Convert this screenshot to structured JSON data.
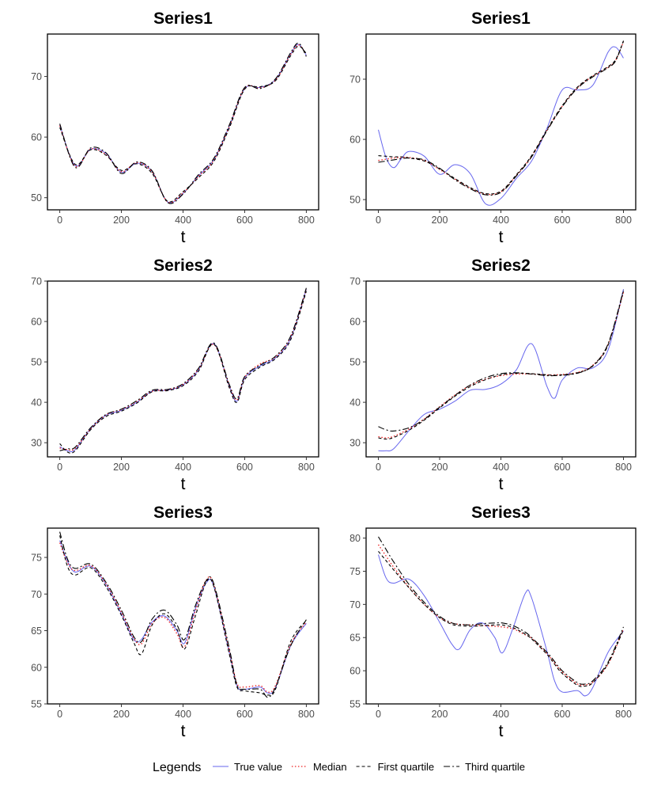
{
  "legend": {
    "title": "Legends",
    "items": [
      {
        "label": "True value",
        "color": "#6666ee",
        "dash": "solid"
      },
      {
        "label": "Median",
        "color": "#ee2222",
        "dash": "dotted"
      },
      {
        "label": "First quartile",
        "color": "#000000",
        "dash": "dashed"
      },
      {
        "label": "Third quartile",
        "color": "#000000",
        "dash": "longdash"
      }
    ]
  },
  "chart_data": [
    {
      "type": "line",
      "title": "Series1",
      "xlabel": "t",
      "ylabel": "",
      "xlim": [
        -40,
        840
      ],
      "ylim": [
        48,
        77
      ],
      "xticks": [
        0,
        200,
        400,
        600,
        800
      ],
      "yticks": [
        50,
        60,
        70
      ],
      "x": [
        0,
        50,
        100,
        150,
        200,
        250,
        300,
        350,
        400,
        450,
        500,
        550,
        600,
        650,
        700,
        750,
        775,
        800
      ],
      "series": [
        {
          "name": "True value",
          "values": [
            62,
            55.3,
            58,
            57.3,
            54.2,
            55.7,
            54.3,
            49.3,
            50.7,
            53.6,
            56.3,
            61.8,
            68,
            68.2,
            69.5,
            73.8,
            75.3,
            73.5
          ]
        },
        {
          "name": "Median",
          "values": [
            61.9,
            55.2,
            58,
            57.1,
            54.3,
            55.8,
            54.2,
            49.3,
            50.8,
            53.5,
            56.2,
            61.7,
            68.1,
            68.1,
            69.4,
            73.7,
            75.2,
            73.6
          ]
        },
        {
          "name": "First quartile",
          "values": [
            61.6,
            55.5,
            57.9,
            57.0,
            54.5,
            55.6,
            54.0,
            49.4,
            51.0,
            53.3,
            56.0,
            61.5,
            67.9,
            68.3,
            69.3,
            73.5,
            75.0,
            73.8
          ]
        },
        {
          "name": "Third quartile",
          "values": [
            62.2,
            55.0,
            58.2,
            57.4,
            54.0,
            55.9,
            54.4,
            49.2,
            50.6,
            53.8,
            56.5,
            62.0,
            68.2,
            68.0,
            69.6,
            74.0,
            75.5,
            73.3
          ]
        }
      ]
    },
    {
      "type": "line",
      "title": "Series1",
      "xlabel": "t",
      "ylabel": "",
      "xlim": [
        -40,
        840
      ],
      "ylim": [
        48.3,
        77.5
      ],
      "xticks": [
        0,
        200,
        400,
        600,
        800
      ],
      "yticks": [
        50,
        60,
        70
      ],
      "x": [
        0,
        25,
        50,
        75,
        100,
        150,
        200,
        250,
        300,
        350,
        400,
        450,
        500,
        550,
        600,
        650,
        700,
        750,
        775,
        800
      ],
      "series": [
        {
          "name": "True value",
          "values": [
            61.6,
            57,
            55.3,
            56.8,
            58,
            57.2,
            54.2,
            55.8,
            54.3,
            49.3,
            50.2,
            53.5,
            56.4,
            61.8,
            68.2,
            68.2,
            69,
            74.5,
            75.3,
            73.5
          ]
        },
        {
          "name": "Median",
          "values": [
            56.5,
            56.7,
            56.9,
            57.0,
            57.0,
            56.5,
            55.0,
            53.4,
            51.9,
            50.9,
            51.3,
            54.0,
            57.2,
            61.5,
            65.5,
            68.6,
            70.5,
            72.0,
            73.2,
            76.2
          ]
        },
        {
          "name": "First quartile",
          "values": [
            57.3,
            57.2,
            57.1,
            57.1,
            56.9,
            56.4,
            55.1,
            53.5,
            52.0,
            51.0,
            51.4,
            54.1,
            57.3,
            61.6,
            65.6,
            68.7,
            70.6,
            72.1,
            73.3,
            76.3
          ]
        },
        {
          "name": "Third quartile",
          "values": [
            56.2,
            56.4,
            56.6,
            56.8,
            56.9,
            56.6,
            55.2,
            53.3,
            51.8,
            50.8,
            51.2,
            53.9,
            57.1,
            61.4,
            65.4,
            68.5,
            70.4,
            71.9,
            73.1,
            76.4
          ]
        }
      ]
    },
    {
      "type": "line",
      "title": "Series2",
      "xlabel": "t",
      "ylabel": "",
      "xlim": [
        -40,
        840
      ],
      "ylim": [
        26.5,
        70
      ],
      "xticks": [
        0,
        200,
        400,
        600,
        800
      ],
      "yticks": [
        30,
        40,
        50,
        60,
        70
      ],
      "x": [
        0,
        25,
        50,
        100,
        150,
        200,
        250,
        300,
        350,
        400,
        450,
        500,
        550,
        575,
        600,
        650,
        700,
        750,
        800
      ],
      "series": [
        {
          "name": "True value",
          "values": [
            29,
            28,
            28.3,
            33.5,
            36.8,
            38,
            40,
            42.8,
            43,
            44.3,
            48,
            54.5,
            44,
            40.3,
            46,
            49,
            51,
            56,
            68
          ]
        },
        {
          "name": "Median",
          "values": [
            28.7,
            28.3,
            28.6,
            33.4,
            36.9,
            38.2,
            40.2,
            42.7,
            43.1,
            44.4,
            48.2,
            54.3,
            44.2,
            40.6,
            46.2,
            49.5,
            51.2,
            56.3,
            67.8
          ]
        },
        {
          "name": "First quartile",
          "values": [
            29.8,
            27.7,
            28.0,
            33.2,
            36.5,
            37.8,
            39.8,
            42.6,
            42.9,
            44.1,
            47.7,
            54.4,
            43.6,
            40.0,
            45.6,
            48.7,
            50.8,
            55.6,
            67.5
          ]
        },
        {
          "name": "Third quartile",
          "values": [
            28.0,
            28.5,
            28.9,
            33.7,
            37.0,
            38.3,
            40.4,
            43.0,
            43.2,
            44.6,
            48.4,
            54.7,
            44.4,
            40.9,
            46.4,
            49.2,
            51.4,
            56.5,
            68.3
          ]
        }
      ]
    },
    {
      "type": "line",
      "title": "Series2",
      "xlabel": "t",
      "ylabel": "",
      "xlim": [
        -40,
        840
      ],
      "ylim": [
        26.5,
        70
      ],
      "xticks": [
        0,
        200,
        400,
        600,
        800
      ],
      "yticks": [
        30,
        40,
        50,
        60,
        70
      ],
      "x": [
        0,
        25,
        50,
        100,
        150,
        200,
        250,
        300,
        350,
        400,
        450,
        500,
        550,
        575,
        600,
        650,
        700,
        750,
        800
      ],
      "series": [
        {
          "name": "True value",
          "values": [
            28,
            28,
            28.5,
            33,
            37,
            38.3,
            40.3,
            43,
            43.2,
            44.5,
            48,
            54.5,
            44,
            41,
            45.5,
            48.5,
            48.5,
            53,
            68
          ]
        },
        {
          "name": "Median",
          "values": [
            31.5,
            31.2,
            31.6,
            33.4,
            35.9,
            38.9,
            41.8,
            44.2,
            45.7,
            46.6,
            47.0,
            47.0,
            46.8,
            46.8,
            46.9,
            47.4,
            49.2,
            54.4,
            67.2
          ]
        },
        {
          "name": "First quartile",
          "values": [
            31.2,
            30.9,
            31.3,
            33.1,
            35.6,
            38.6,
            41.5,
            43.9,
            45.6,
            46.8,
            47.2,
            47.1,
            46.8,
            46.7,
            46.8,
            47.3,
            49.0,
            54.2,
            67.5
          ]
        },
        {
          "name": "Third quartile",
          "values": [
            34.0,
            33.2,
            32.9,
            33.7,
            35.8,
            38.8,
            41.7,
            44.3,
            46.1,
            47.1,
            47.3,
            47.0,
            46.6,
            46.6,
            46.7,
            47.2,
            49.1,
            54.5,
            67.8
          ]
        }
      ]
    },
    {
      "type": "line",
      "title": "Series3",
      "xlabel": "t",
      "ylabel": "",
      "xlim": [
        -40,
        840
      ],
      "ylim": [
        55,
        79
      ],
      "xticks": [
        0,
        200,
        400,
        600,
        800
      ],
      "yticks": [
        55,
        60,
        65,
        70,
        75
      ],
      "x": [
        0,
        25,
        50,
        100,
        150,
        200,
        240,
        265,
        300,
        340,
        380,
        405,
        440,
        475,
        500,
        550,
        575,
        600,
        650,
        675,
        700,
        750,
        800
      ],
      "series": [
        {
          "name": "True value",
          "values": [
            77.3,
            74.5,
            73,
            73.8,
            71.3,
            67.3,
            63.8,
            63.8,
            66.2,
            67,
            65,
            63.3,
            68,
            71.5,
            71,
            62,
            57.5,
            57,
            57.3,
            56.5,
            57.2,
            63,
            66
          ]
        },
        {
          "name": "Median",
          "values": [
            77.0,
            74.3,
            73.2,
            73.9,
            71.4,
            67.5,
            64.0,
            63.2,
            66.0,
            66.8,
            64.6,
            62.8,
            67.7,
            71.9,
            71.2,
            62.3,
            57.8,
            57.3,
            57.5,
            56.6,
            57.5,
            63.2,
            66.2
          ]
        },
        {
          "name": "First quartile",
          "values": [
            78.0,
            73.8,
            72.6,
            73.6,
            71.0,
            67.1,
            63.4,
            61.8,
            65.8,
            67.3,
            65.2,
            62.5,
            67.0,
            71.6,
            71.0,
            61.8,
            57.3,
            56.8,
            56.5,
            56.2,
            57.0,
            63.6,
            66.4
          ]
        },
        {
          "name": "Third quartile",
          "values": [
            78.5,
            74.8,
            73.5,
            74.1,
            71.6,
            67.8,
            64.2,
            63.5,
            66.6,
            67.8,
            65.8,
            63.8,
            68.4,
            71.8,
            71.4,
            62.6,
            57.6,
            57.0,
            57.0,
            55.9,
            57.3,
            63.0,
            66.5
          ]
        }
      ]
    },
    {
      "type": "line",
      "title": "Series3",
      "xlabel": "t",
      "ylabel": "",
      "xlim": [
        -40,
        840
      ],
      "ylim": [
        55,
        81.5
      ],
      "xticks": [
        0,
        200,
        400,
        600,
        800
      ],
      "yticks": [
        55,
        60,
        65,
        70,
        75,
        80
      ],
      "x": [
        0,
        25,
        50,
        100,
        150,
        200,
        240,
        265,
        300,
        340,
        380,
        405,
        440,
        480,
        500,
        550,
        575,
        600,
        650,
        675,
        700,
        750,
        800
      ],
      "series": [
        {
          "name": "True value",
          "values": [
            77.5,
            74,
            73.2,
            73.8,
            71.3,
            67.3,
            64,
            63.3,
            66.2,
            67.2,
            65,
            62.7,
            66.5,
            71.7,
            71,
            63,
            58.5,
            56.8,
            57,
            56.2,
            57.5,
            62.8,
            66
          ]
        },
        {
          "name": "Median",
          "values": [
            79.0,
            77.3,
            75.6,
            72.6,
            70.0,
            68.0,
            67.2,
            67.0,
            66.9,
            66.8,
            66.7,
            66.6,
            66.3,
            65.4,
            64.9,
            62.6,
            61.2,
            59.8,
            58.0,
            57.9,
            58.3,
            61.0,
            66.3
          ]
        },
        {
          "name": "First quartile",
          "values": [
            78.0,
            76.6,
            75.2,
            72.5,
            70.0,
            68.0,
            67.0,
            66.8,
            66.7,
            66.8,
            66.9,
            66.9,
            66.5,
            65.5,
            64.8,
            62.5,
            61.0,
            59.6,
            57.8,
            57.7,
            58.2,
            61.1,
            66.2
          ]
        },
        {
          "name": "Third quartile",
          "values": [
            80.2,
            78.3,
            76.4,
            73.0,
            70.3,
            68.2,
            67.2,
            67.0,
            66.9,
            67.1,
            67.2,
            67.2,
            66.8,
            65.8,
            65.0,
            62.8,
            61.4,
            60.0,
            58.2,
            58.0,
            58.5,
            61.3,
            66.6
          ]
        }
      ]
    }
  ]
}
